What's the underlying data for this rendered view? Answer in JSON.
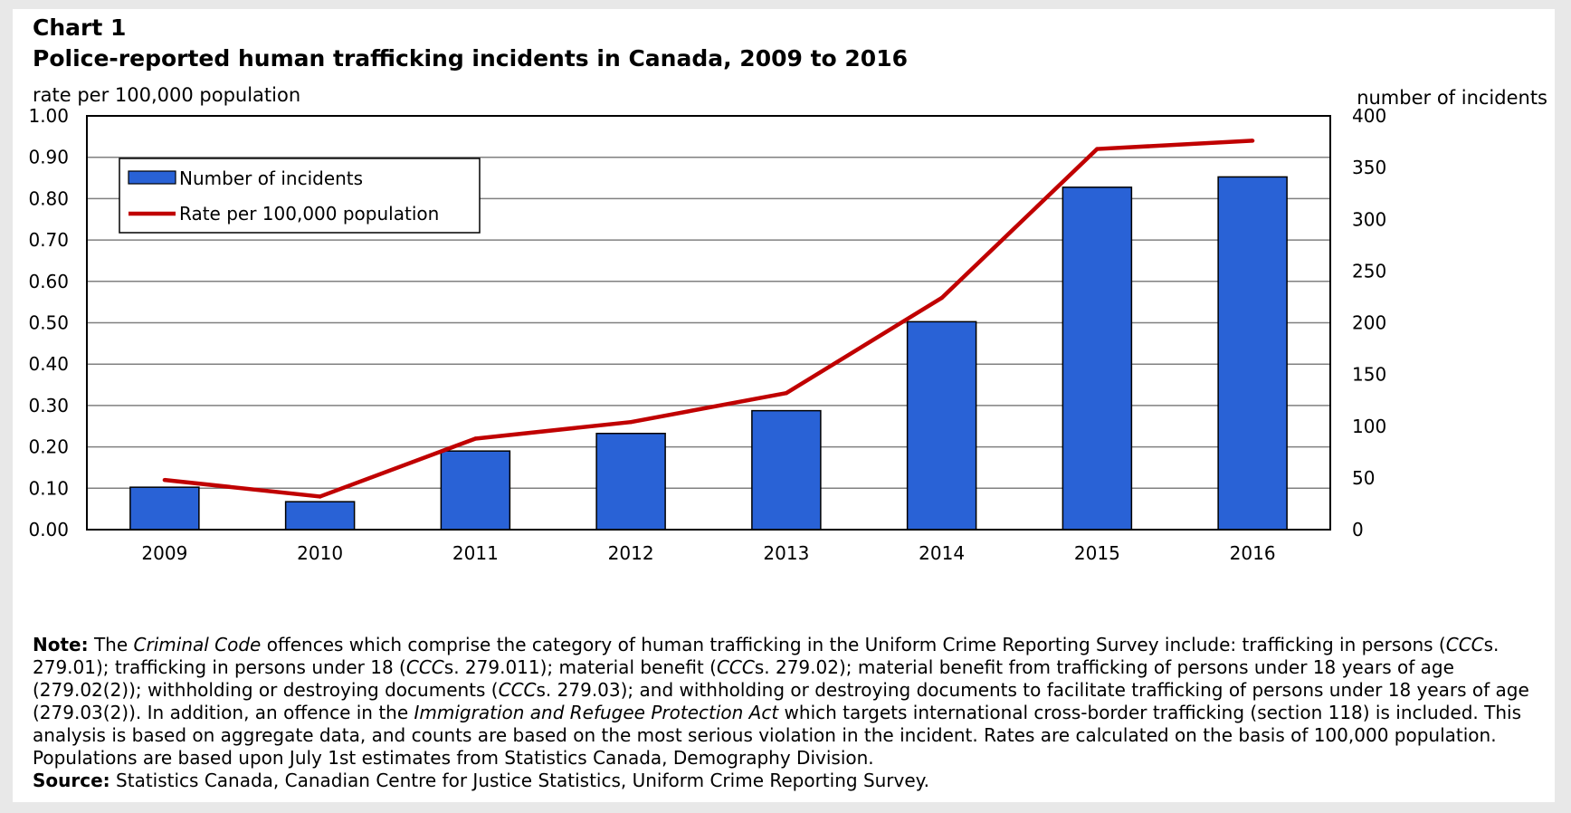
{
  "header": {
    "chart_number": "Chart 1",
    "title": "Police-reported human trafficking incidents in Canada, 2009 to 2016"
  },
  "axes": {
    "left_title": "rate per 100,000 population",
    "right_title": "number of incidents"
  },
  "colors": {
    "bars": "#2962d6",
    "line": "#c00000",
    "grid": "#808080"
  },
  "chart_data": {
    "type": "bar",
    "categories": [
      "2009",
      "2010",
      "2011",
      "2012",
      "2013",
      "2014",
      "2015",
      "2016"
    ],
    "series": [
      {
        "name": "Number of incidents",
        "type": "bar",
        "axis": "right",
        "values": [
          41,
          27,
          76,
          93,
          115,
          201,
          331,
          341
        ]
      },
      {
        "name": "Rate per 100,000 population",
        "type": "line",
        "axis": "left",
        "values": [
          0.12,
          0.08,
          0.22,
          0.26,
          0.33,
          0.56,
          0.92,
          0.94
        ]
      }
    ],
    "y_left": {
      "ylim": [
        0,
        1
      ],
      "ticks": [
        "0.00",
        "0.10",
        "0.20",
        "0.30",
        "0.40",
        "0.50",
        "0.60",
        "0.70",
        "0.80",
        "0.90",
        "1.00"
      ]
    },
    "y_right": {
      "ylim": [
        0,
        400
      ],
      "ticks": [
        "0",
        "50",
        "100",
        "150",
        "200",
        "250",
        "300",
        "350",
        "400"
      ]
    },
    "grid": true,
    "legend": "top-left"
  },
  "notes": {
    "note_label": "Note:",
    "note_segments": [
      {
        "text": " The ",
        "italic": false
      },
      {
        "text": "Criminal Code",
        "italic": true
      },
      {
        "text": " offences which comprise the category of human trafficking in the Uniform Crime Reporting Survey include: trafficking in persons (",
        "italic": false
      },
      {
        "text": "CCC",
        "italic": true
      },
      {
        "text": "s. 279.01); trafficking in persons under 18 (",
        "italic": false
      },
      {
        "text": "CCC",
        "italic": true
      },
      {
        "text": "s. 279.011); material benefit (",
        "italic": false
      },
      {
        "text": "CCC",
        "italic": true
      },
      {
        "text": "s. 279.02); material benefit from trafficking of persons under 18 years of age (279.02(2)); withholding or destroying documents (",
        "italic": false
      },
      {
        "text": "CCC",
        "italic": true
      },
      {
        "text": "s. 279.03); and withholding or destroying documents to facilitate trafficking of persons under 18 years of age (279.03(2)). In addition, an offence in the ",
        "italic": false
      },
      {
        "text": "Immigration and Refugee Protection Act",
        "italic": true
      },
      {
        "text": " which targets international cross-border trafficking (section 118) is included. This analysis is based on aggregate data, and counts are based on the most serious violation in the incident. Rates are calculated on the basis of 100,000 population. Populations are based upon July 1st estimates from Statistics Canada, Demography Division.",
        "italic": false
      }
    ],
    "source_label": "Source:",
    "source_text": " Statistics Canada, Canadian Centre for Justice Statistics, Uniform Crime Reporting Survey."
  }
}
